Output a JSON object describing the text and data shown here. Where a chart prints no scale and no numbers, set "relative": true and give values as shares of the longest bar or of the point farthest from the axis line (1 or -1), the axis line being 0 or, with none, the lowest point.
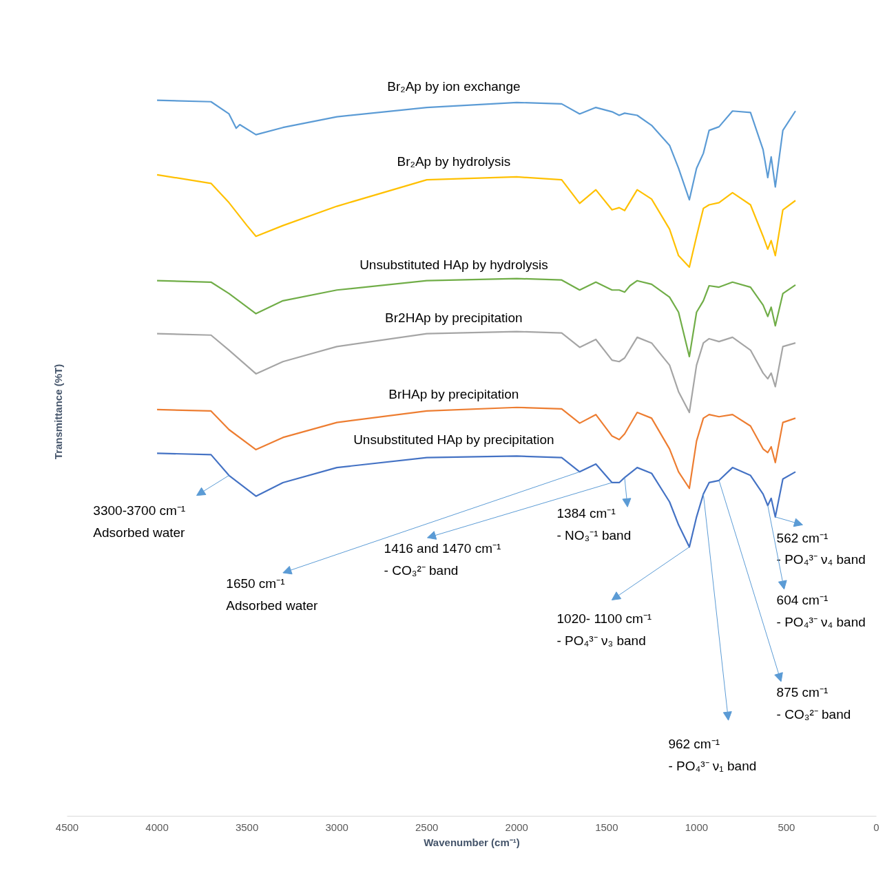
{
  "chart_data": {
    "type": "line",
    "relative": true,
    "xlabel": "Wavenumber (cm⁻¹)",
    "ylabel": "Transmittance (%T)",
    "xlim": [
      4500,
      0
    ],
    "xticks": [
      4500,
      4000,
      3500,
      3000,
      2500,
      2000,
      1500,
      1000,
      500,
      0
    ],
    "line_style": "solid",
    "series": [
      {
        "name": "Br₂Ap by ion exchange",
        "color": "#5b9bd5",
        "x": [
          4000,
          3700,
          3600,
          3560,
          3540,
          3450,
          3300,
          3000,
          2500,
          2000,
          1750,
          1650,
          1560,
          1470,
          1430,
          1400,
          1330,
          1250,
          1150,
          1100,
          1040,
          1000,
          962,
          930,
          875,
          800,
          700,
          630,
          604,
          585,
          562,
          520,
          450
        ],
        "values": [
          1.0,
          0.998,
          0.981,
          0.961,
          0.966,
          0.952,
          0.962,
          0.977,
          0.99,
          0.997,
          0.995,
          0.981,
          0.99,
          0.984,
          0.979,
          0.982,
          0.979,
          0.965,
          0.937,
          0.905,
          0.861,
          0.905,
          0.926,
          0.958,
          0.963,
          0.985,
          0.983,
          0.931,
          0.892,
          0.921,
          0.879,
          0.958,
          0.985
        ]
      },
      {
        "name": "Br₂Ap by hydrolysis",
        "color": "#ffc000",
        "x": [
          4000,
          3700,
          3600,
          3500,
          3450,
          3300,
          3000,
          2500,
          2000,
          1750,
          1650,
          1560,
          1470,
          1430,
          1400,
          1330,
          1250,
          1150,
          1100,
          1040,
          1000,
          962,
          930,
          875,
          800,
          700,
          630,
          604,
          585,
          562,
          520,
          450
        ],
        "values": [
          0.896,
          0.884,
          0.857,
          0.825,
          0.81,
          0.825,
          0.852,
          0.889,
          0.893,
          0.889,
          0.856,
          0.875,
          0.847,
          0.85,
          0.846,
          0.875,
          0.862,
          0.82,
          0.783,
          0.767,
          0.81,
          0.849,
          0.854,
          0.857,
          0.871,
          0.854,
          0.81,
          0.792,
          0.804,
          0.783,
          0.847,
          0.86
        ]
      },
      {
        "name": "Unsubstituted HAp by hydrolysis",
        "color": "#70ad47",
        "x": [
          4000,
          3700,
          3600,
          3450,
          3300,
          3000,
          2500,
          2000,
          1750,
          1650,
          1560,
          1470,
          1430,
          1400,
          1370,
          1330,
          1250,
          1150,
          1100,
          1040,
          1000,
          962,
          930,
          875,
          800,
          700,
          630,
          604,
          585,
          562,
          520,
          450
        ],
        "values": [
          0.748,
          0.746,
          0.73,
          0.702,
          0.72,
          0.735,
          0.748,
          0.751,
          0.749,
          0.735,
          0.746,
          0.735,
          0.735,
          0.732,
          0.741,
          0.748,
          0.743,
          0.725,
          0.704,
          0.642,
          0.704,
          0.72,
          0.741,
          0.739,
          0.746,
          0.739,
          0.714,
          0.698,
          0.711,
          0.685,
          0.73,
          0.742
        ]
      },
      {
        "name": "Br2HAp by precipitation",
        "color": "#a5a5a5",
        "x": [
          4000,
          3700,
          3600,
          3450,
          3300,
          3000,
          2500,
          2000,
          1750,
          1650,
          1560,
          1470,
          1430,
          1400,
          1330,
          1250,
          1150,
          1100,
          1040,
          1000,
          962,
          930,
          875,
          800,
          700,
          630,
          604,
          585,
          562,
          520,
          450
        ],
        "values": [
          0.674,
          0.672,
          0.651,
          0.618,
          0.635,
          0.656,
          0.674,
          0.677,
          0.675,
          0.655,
          0.666,
          0.637,
          0.635,
          0.64,
          0.669,
          0.661,
          0.63,
          0.593,
          0.564,
          0.63,
          0.661,
          0.667,
          0.663,
          0.669,
          0.651,
          0.619,
          0.611,
          0.619,
          0.6,
          0.656,
          0.661
        ]
      },
      {
        "name": "BrHAp by precipitation",
        "color": "#ed7d31",
        "x": [
          4000,
          3700,
          3600,
          3450,
          3300,
          3000,
          2500,
          2000,
          1750,
          1650,
          1560,
          1470,
          1430,
          1400,
          1330,
          1250,
          1150,
          1100,
          1040,
          1000,
          962,
          930,
          875,
          800,
          700,
          630,
          604,
          585,
          562,
          520,
          450
        ],
        "values": [
          0.568,
          0.566,
          0.54,
          0.512,
          0.529,
          0.55,
          0.566,
          0.571,
          0.569,
          0.549,
          0.561,
          0.531,
          0.526,
          0.534,
          0.564,
          0.556,
          0.513,
          0.481,
          0.458,
          0.524,
          0.556,
          0.561,
          0.558,
          0.561,
          0.545,
          0.513,
          0.508,
          0.516,
          0.494,
          0.55,
          0.556
        ]
      },
      {
        "name": "Unsubstituted HAp by precipitation",
        "color": "#4472c4",
        "x": [
          4000,
          3700,
          3600,
          3450,
          3300,
          3000,
          2500,
          2000,
          1750,
          1650,
          1560,
          1470,
          1430,
          1400,
          1330,
          1250,
          1150,
          1100,
          1040,
          1000,
          962,
          930,
          875,
          800,
          700,
          630,
          604,
          585,
          562,
          520,
          450
        ],
        "values": [
          0.507,
          0.505,
          0.476,
          0.447,
          0.466,
          0.487,
          0.501,
          0.503,
          0.501,
          0.481,
          0.492,
          0.466,
          0.466,
          0.473,
          0.487,
          0.479,
          0.439,
          0.407,
          0.376,
          0.418,
          0.45,
          0.466,
          0.469,
          0.487,
          0.476,
          0.45,
          0.434,
          0.444,
          0.418,
          0.471,
          0.481
        ]
      }
    ],
    "annotations": [
      {
        "text": "3300-3700 cm⁻¹\nAdsorbed water",
        "x": 3600,
        "y": 0.476
      },
      {
        "text": "1650 cm⁻¹\nAdsorbed water",
        "x": 1650,
        "y": 0.481
      },
      {
        "text": "1416 and 1470 cm⁻¹\n- CO₃²⁻ band",
        "x": 1470,
        "y": 0.466
      },
      {
        "text": "1384 cm⁻¹\n- NO₃⁻¹ band",
        "x": 1400,
        "y": 0.473
      },
      {
        "text": "1020- 1100 cm⁻¹\n- PO₄³⁻ ν₃ band",
        "x": 1040,
        "y": 0.376
      },
      {
        "text": "962 cm⁻¹\n- PO₄³⁻ ν₁ band",
        "x": 962,
        "y": 0.45
      },
      {
        "text": "875 cm⁻¹\n- CO₃²⁻ band",
        "x": 875,
        "y": 0.469
      },
      {
        "text": "604 cm⁻¹\n- PO₄³⁻ ν₄ band",
        "x": 604,
        "y": 0.434
      },
      {
        "text": "562 cm⁻¹\n- PO₄³⁻ ν₄ band",
        "x": 562,
        "y": 0.418
      }
    ]
  }
}
